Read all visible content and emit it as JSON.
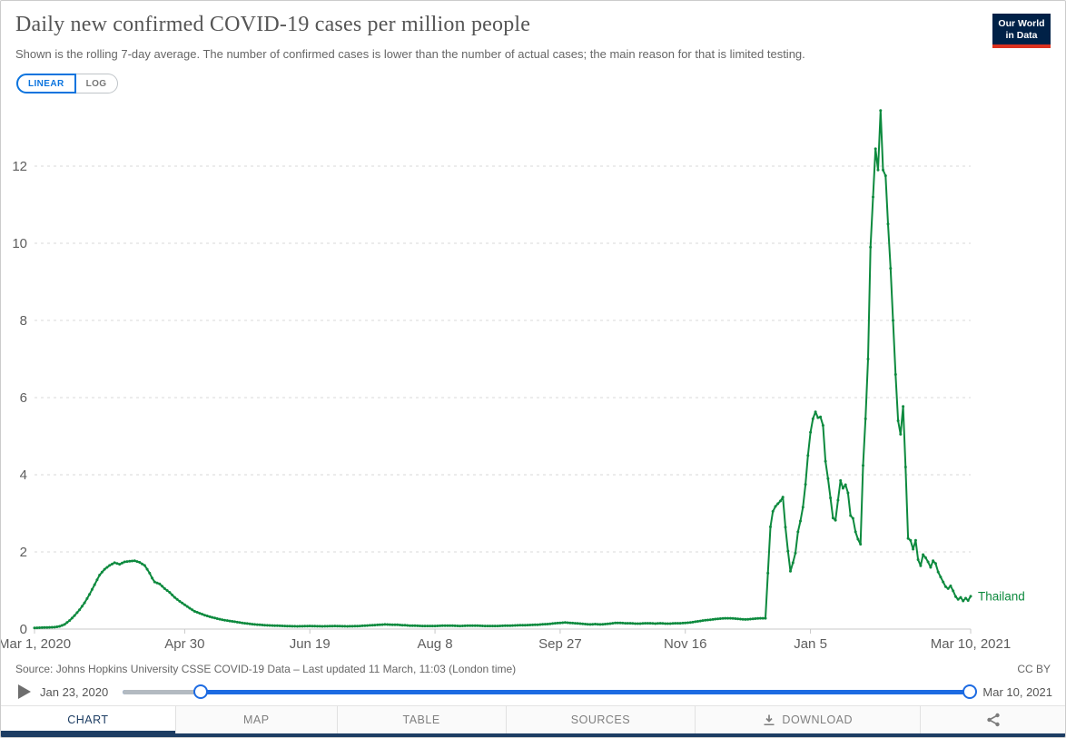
{
  "header": {
    "title": "Daily new confirmed COVID-19 cases per million people",
    "subtitle": "Shown is the rolling 7-day average. The number of confirmed cases is lower than the number of actual cases; the main reason for that is limited testing.",
    "logo": {
      "line1": "Our World",
      "line2": "in Data"
    },
    "scale_toggle": {
      "linear": "LINEAR",
      "log": "LOG",
      "active": "LINEAR"
    }
  },
  "colors": {
    "line_green": "#0d8a3e",
    "accent_blue": "#0b74de",
    "slider_blue": "#1d6be2",
    "navy": "#1d3d63",
    "logo_navy": "#002147",
    "logo_red": "#dc311f"
  },
  "chart_data": {
    "type": "line",
    "title": "Daily new confirmed COVID-19 cases per million people",
    "grid": "horizontal-dashed",
    "legend_position": "end-of-line",
    "end_label": "Thailand",
    "x_axis": {
      "start_date": "Mar 1, 2020",
      "end_date": "Mar 10, 2021",
      "total_days": 374,
      "tick_days": [
        0,
        60,
        110,
        160,
        210,
        260,
        310,
        374
      ],
      "tick_labels": [
        "Mar 1, 2020",
        "Apr 30",
        "Jun 19",
        "Aug 8",
        "Sep 27",
        "Nov 16",
        "Jan 5",
        "Mar 10, 2021"
      ]
    },
    "y_axis": {
      "ticks": [
        0,
        2,
        4,
        6,
        8,
        10,
        12
      ],
      "max_value": 13.5
    },
    "series": [
      {
        "name": "Thailand",
        "color": "#0d8a3e",
        "x_unit": "days since Mar 1, 2020",
        "points": [
          [
            0,
            0.03
          ],
          [
            4,
            0.04
          ],
          [
            8,
            0.05
          ],
          [
            10,
            0.07
          ],
          [
            12,
            0.12
          ],
          [
            14,
            0.22
          ],
          [
            16,
            0.35
          ],
          [
            18,
            0.5
          ],
          [
            20,
            0.68
          ],
          [
            22,
            0.9
          ],
          [
            24,
            1.15
          ],
          [
            26,
            1.4
          ],
          [
            28,
            1.55
          ],
          [
            30,
            1.65
          ],
          [
            32,
            1.72
          ],
          [
            34,
            1.68
          ],
          [
            36,
            1.74
          ],
          [
            38,
            1.76
          ],
          [
            40,
            1.77
          ],
          [
            42,
            1.73
          ],
          [
            44,
            1.65
          ],
          [
            45,
            1.55
          ],
          [
            46,
            1.45
          ],
          [
            47,
            1.32
          ],
          [
            48,
            1.22
          ],
          [
            50,
            1.17
          ],
          [
            52,
            1.05
          ],
          [
            54,
            0.95
          ],
          [
            56,
            0.82
          ],
          [
            58,
            0.72
          ],
          [
            60,
            0.63
          ],
          [
            62,
            0.54
          ],
          [
            64,
            0.46
          ],
          [
            66,
            0.41
          ],
          [
            68,
            0.36
          ],
          [
            70,
            0.32
          ],
          [
            73,
            0.27
          ],
          [
            76,
            0.23
          ],
          [
            80,
            0.19
          ],
          [
            84,
            0.15
          ],
          [
            88,
            0.12
          ],
          [
            92,
            0.1
          ],
          [
            96,
            0.09
          ],
          [
            100,
            0.08
          ],
          [
            105,
            0.07
          ],
          [
            110,
            0.08
          ],
          [
            115,
            0.07
          ],
          [
            120,
            0.08
          ],
          [
            125,
            0.07
          ],
          [
            130,
            0.08
          ],
          [
            135,
            0.1
          ],
          [
            140,
            0.12
          ],
          [
            145,
            0.11
          ],
          [
            150,
            0.09
          ],
          [
            155,
            0.08
          ],
          [
            160,
            0.08
          ],
          [
            165,
            0.09
          ],
          [
            170,
            0.08
          ],
          [
            175,
            0.09
          ],
          [
            180,
            0.08
          ],
          [
            185,
            0.08
          ],
          [
            190,
            0.09
          ],
          [
            195,
            0.1
          ],
          [
            200,
            0.11
          ],
          [
            205,
            0.13
          ],
          [
            208,
            0.15
          ],
          [
            210,
            0.16
          ],
          [
            212,
            0.17
          ],
          [
            214,
            0.16
          ],
          [
            216,
            0.15
          ],
          [
            218,
            0.14
          ],
          [
            220,
            0.13
          ],
          [
            222,
            0.12
          ],
          [
            224,
            0.13
          ],
          [
            226,
            0.12
          ],
          [
            228,
            0.13
          ],
          [
            230,
            0.14
          ],
          [
            232,
            0.16
          ],
          [
            234,
            0.16
          ],
          [
            236,
            0.15
          ],
          [
            238,
            0.15
          ],
          [
            240,
            0.14
          ],
          [
            242,
            0.14
          ],
          [
            244,
            0.15
          ],
          [
            246,
            0.15
          ],
          [
            248,
            0.14
          ],
          [
            250,
            0.15
          ],
          [
            252,
            0.14
          ],
          [
            254,
            0.14
          ],
          [
            256,
            0.15
          ],
          [
            258,
            0.15
          ],
          [
            260,
            0.16
          ],
          [
            262,
            0.17
          ],
          [
            264,
            0.19
          ],
          [
            266,
            0.21
          ],
          [
            268,
            0.23
          ],
          [
            270,
            0.24
          ],
          [
            272,
            0.26
          ],
          [
            274,
            0.27
          ],
          [
            276,
            0.28
          ],
          [
            278,
            0.28
          ],
          [
            280,
            0.27
          ],
          [
            282,
            0.26
          ],
          [
            284,
            0.25
          ],
          [
            286,
            0.26
          ],
          [
            288,
            0.27
          ],
          [
            290,
            0.28
          ],
          [
            292,
            0.28
          ],
          [
            293,
            1.45
          ],
          [
            294,
            2.65
          ],
          [
            295,
            3.05
          ],
          [
            296,
            3.18
          ],
          [
            297,
            3.25
          ],
          [
            298,
            3.32
          ],
          [
            299,
            3.42
          ],
          [
            300,
            2.64
          ],
          [
            301,
            2.02
          ],
          [
            302,
            1.5
          ],
          [
            303,
            1.72
          ],
          [
            304,
            1.97
          ],
          [
            305,
            2.52
          ],
          [
            306,
            2.8
          ],
          [
            307,
            3.16
          ],
          [
            308,
            3.75
          ],
          [
            309,
            4.5
          ],
          [
            310,
            5.1
          ],
          [
            311,
            5.45
          ],
          [
            312,
            5.63
          ],
          [
            313,
            5.48
          ],
          [
            314,
            5.5
          ],
          [
            315,
            5.28
          ],
          [
            316,
            4.35
          ],
          [
            317,
            3.9
          ],
          [
            318,
            3.4
          ],
          [
            319,
            2.88
          ],
          [
            320,
            2.82
          ],
          [
            321,
            3.34
          ],
          [
            322,
            3.85
          ],
          [
            323,
            3.65
          ],
          [
            324,
            3.74
          ],
          [
            325,
            3.53
          ],
          [
            326,
            2.94
          ],
          [
            327,
            2.87
          ],
          [
            328,
            2.52
          ],
          [
            329,
            2.33
          ],
          [
            330,
            2.2
          ],
          [
            331,
            4.24
          ],
          [
            332,
            5.45
          ],
          [
            333,
            7.0
          ],
          [
            334,
            9.9
          ],
          [
            335,
            11.2
          ],
          [
            336,
            12.45
          ],
          [
            337,
            11.9
          ],
          [
            338,
            13.44
          ],
          [
            339,
            11.9
          ],
          [
            340,
            11.75
          ],
          [
            341,
            10.5
          ],
          [
            342,
            9.35
          ],
          [
            343,
            8.0
          ],
          [
            344,
            6.6
          ],
          [
            345,
            5.4
          ],
          [
            346,
            5.05
          ],
          [
            347,
            5.77
          ],
          [
            348,
            4.2
          ],
          [
            349,
            2.35
          ],
          [
            350,
            2.3
          ],
          [
            351,
            2.07
          ],
          [
            352,
            2.3
          ],
          [
            353,
            1.8
          ],
          [
            354,
            1.64
          ],
          [
            355,
            1.93
          ],
          [
            356,
            1.85
          ],
          [
            357,
            1.74
          ],
          [
            358,
            1.6
          ],
          [
            359,
            1.77
          ],
          [
            360,
            1.7
          ],
          [
            361,
            1.48
          ],
          [
            362,
            1.35
          ],
          [
            363,
            1.22
          ],
          [
            364,
            1.1
          ],
          [
            365,
            1.05
          ],
          [
            366,
            1.12
          ],
          [
            367,
            0.99
          ],
          [
            368,
            0.84
          ],
          [
            369,
            0.77
          ],
          [
            370,
            0.82
          ],
          [
            371,
            0.73
          ],
          [
            372,
            0.8
          ],
          [
            373,
            0.74
          ],
          [
            374,
            0.85
          ]
        ]
      }
    ]
  },
  "footer": {
    "source": "Source: Johns Hopkins University CSSE COVID-19 Data – Last updated 11 March, 11:03 (London time)",
    "license": "CC BY",
    "timeline": {
      "start_label": "Jan 23, 2020",
      "end_label": "Mar 10, 2021"
    },
    "tabs": [
      {
        "label": "CHART",
        "active": true
      },
      {
        "label": "MAP",
        "active": false
      },
      {
        "label": "TABLE",
        "active": false
      },
      {
        "label": "SOURCES",
        "active": false
      },
      {
        "label": "DOWNLOAD",
        "active": false,
        "icon": "download"
      },
      {
        "label": "",
        "active": false,
        "icon": "share"
      }
    ]
  }
}
